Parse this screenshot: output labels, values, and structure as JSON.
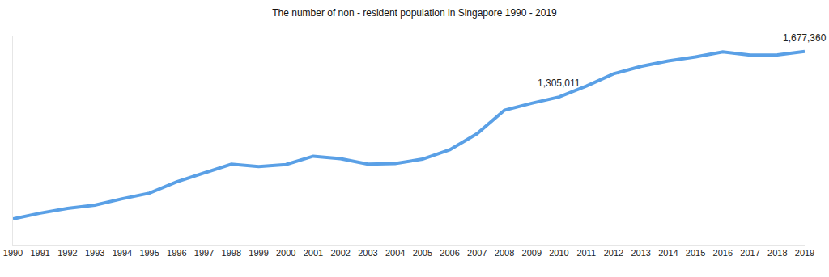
{
  "chart_data": {
    "type": "line",
    "title": "The number of non - resident population in Singapore 1990 - 2019",
    "categories": [
      "1990",
      "1991",
      "1992",
      "1993",
      "1994",
      "1995",
      "1996",
      "1997",
      "1998",
      "1999",
      "2000",
      "2001",
      "2002",
      "2003",
      "2004",
      "2005",
      "2006",
      "2007",
      "2008",
      "2009",
      "2010",
      "2011",
      "2012",
      "2013",
      "2014",
      "2015",
      "2016",
      "2017",
      "2018",
      "2019"
    ],
    "values": [
      311264,
      358000,
      397000,
      423000,
      475000,
      521000,
      613000,
      685000,
      757000,
      737000,
      754524,
      822000,
      802000,
      757000,
      763000,
      797900,
      875000,
      1006000,
      1196700,
      1253700,
      1305011,
      1394400,
      1494200,
      1554400,
      1599000,
      1632300,
      1673700,
      1647100,
      1648700,
      1677360
    ],
    "color": "#5aa0e6",
    "ylim": [
      100000,
      1800000
    ],
    "grid": false,
    "tick_labels": "x",
    "annotations": [
      {
        "x": "2010",
        "y": 1305011,
        "text": "1,305,011"
      },
      {
        "x": "2019",
        "y": 1677360,
        "text": "1,677,360"
      }
    ]
  }
}
